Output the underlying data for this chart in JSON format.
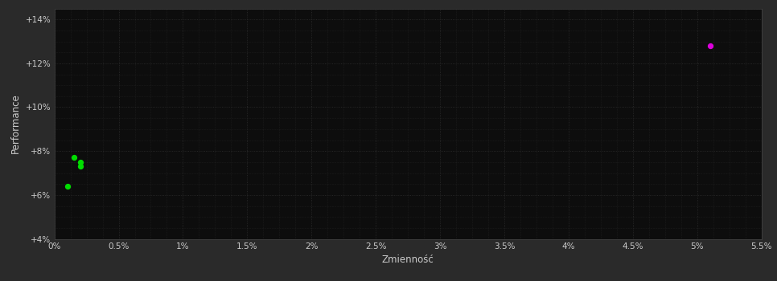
{
  "background_color": "#2a2a2a",
  "plot_bg_color": "#0d0d0d",
  "grid_color": "#2e2e2e",
  "text_color": "#cccccc",
  "xlabel": "Zmienność",
  "ylabel": "Performance",
  "xlim": [
    0,
    0.055
  ],
  "ylim": [
    0.04,
    0.145
  ],
  "xticks": [
    0.0,
    0.005,
    0.01,
    0.015,
    0.02,
    0.025,
    0.03,
    0.035,
    0.04,
    0.045,
    0.05,
    0.055
  ],
  "xtick_labels": [
    "0%",
    "0.5%",
    "1%",
    "1.5%",
    "2%",
    "2.5%",
    "3%",
    "3.5%",
    "4%",
    "4.5%",
    "5%",
    "5.5%"
  ],
  "yticks": [
    0.04,
    0.06,
    0.08,
    0.1,
    0.12,
    0.14
  ],
  "ytick_labels": [
    "+4%",
    "+6%",
    "+8%",
    "+10%",
    "+12%",
    "+14%"
  ],
  "green_points": [
    [
      0.0015,
      0.077
    ],
    [
      0.002,
      0.075
    ],
    [
      0.002,
      0.073
    ],
    [
      0.001,
      0.064
    ]
  ],
  "magenta_points": [
    [
      0.051,
      0.128
    ]
  ],
  "green_color": "#00dd00",
  "magenta_color": "#dd00dd",
  "point_size": 18,
  "minor_grid_steps": 4
}
